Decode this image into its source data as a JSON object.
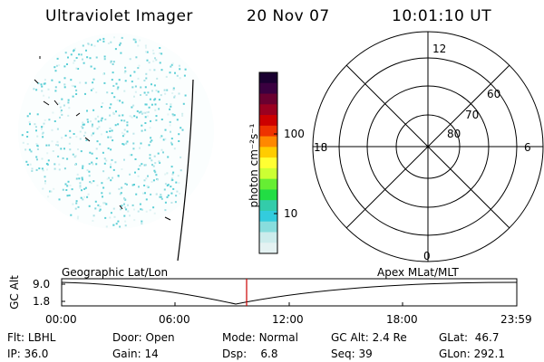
{
  "header": {
    "title": "Ultraviolet Imager",
    "date": "20 Nov 07",
    "time": "10:01:10 UT"
  },
  "colorbar": {
    "unit_label": "photon cm⁻²s⁻¹",
    "tick_labels": [
      "100",
      "10"
    ],
    "colors": [
      "#1a0030",
      "#3a0040",
      "#6a0030",
      "#9a0020",
      "#cc0000",
      "#ee3300",
      "#ff8800",
      "#ffcc00",
      "#ffff33",
      "#ccff33",
      "#66ee33",
      "#22dd44",
      "#33ccaa",
      "#33ccdd",
      "#88dddd",
      "#ccecec",
      "#e4f2f2"
    ]
  },
  "polar_plot": {
    "mlt_labels": {
      "top": "12",
      "left": "18",
      "right": "6",
      "bottom": "0"
    },
    "lat_labels": [
      "60",
      "70",
      "80"
    ]
  },
  "timeline": {
    "y_axis_label": "GC Alt",
    "y_ticks": [
      "9.0",
      "1.8"
    ],
    "left_caption": "Geographic Lat/Lon",
    "right_caption": "Apex MLat/MLT",
    "x_ticks": [
      "00:00",
      "06:00",
      "12:00",
      "18:00",
      "23:59"
    ],
    "marker_color": "#cc0000"
  },
  "status": {
    "row1": [
      {
        "label": "Flt:",
        "value": "LBHL"
      },
      {
        "label": "Door:",
        "value": "Open"
      },
      {
        "label": "Mode:",
        "value": "Normal"
      },
      {
        "label": "GC Alt:",
        "value": "2.4 Re"
      },
      {
        "label": "GLat:",
        "value": "46.7"
      }
    ],
    "row2": [
      {
        "label": "IP:",
        "value": "36.0"
      },
      {
        "label": "Gain:",
        "value": "14"
      },
      {
        "label": "Dsp:",
        "value": "6.8"
      },
      {
        "label": "Seq:",
        "value": "39"
      },
      {
        "label": "GLon:",
        "value": "292.1"
      }
    ]
  }
}
